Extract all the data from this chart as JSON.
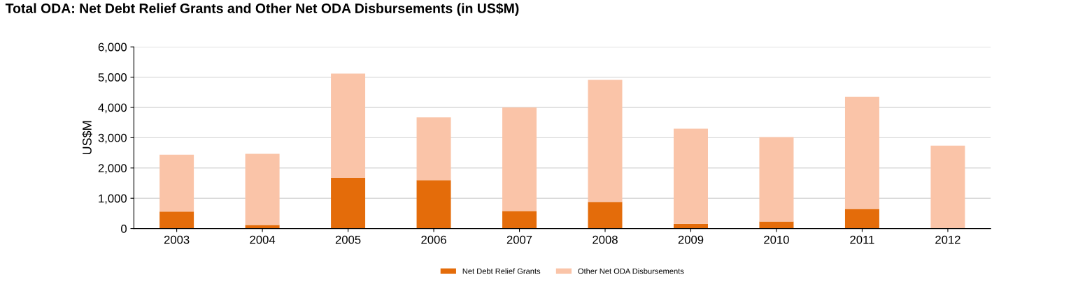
{
  "chart_data": {
    "type": "bar",
    "title": "Total ODA: Net Debt Relief Grants and Other Net ODA Disbursements (in US$M)",
    "ylabel": "US$M",
    "categories": [
      "2003",
      "2004",
      "2005",
      "2006",
      "2007",
      "2008",
      "2009",
      "2010",
      "2011",
      "2012"
    ],
    "stacked": true,
    "series": [
      {
        "name": "Net Debt Relief Grants",
        "color": "#e46c0a",
        "values": [
          560,
          120,
          1670,
          1600,
          580,
          880,
          160,
          230,
          650,
          0
        ]
      },
      {
        "name": "Other Net ODA Disbursements",
        "color": "#fac4a8",
        "values": [
          1880,
          2350,
          3450,
          2070,
          3420,
          4030,
          3140,
          2790,
          3700,
          2740
        ]
      }
    ],
    "ylim": [
      0,
      6000
    ],
    "yticks": [
      {
        "value": 0,
        "label": "0"
      },
      {
        "value": 1000,
        "label": "1,000"
      },
      {
        "value": 2000,
        "label": "2,000"
      },
      {
        "value": 3000,
        "label": "3,000"
      },
      {
        "value": 4000,
        "label": "4,000"
      },
      {
        "value": 5000,
        "label": "5,000"
      },
      {
        "value": 6000,
        "label": "6,000"
      }
    ],
    "grid": "y",
    "legend": "bottom"
  }
}
